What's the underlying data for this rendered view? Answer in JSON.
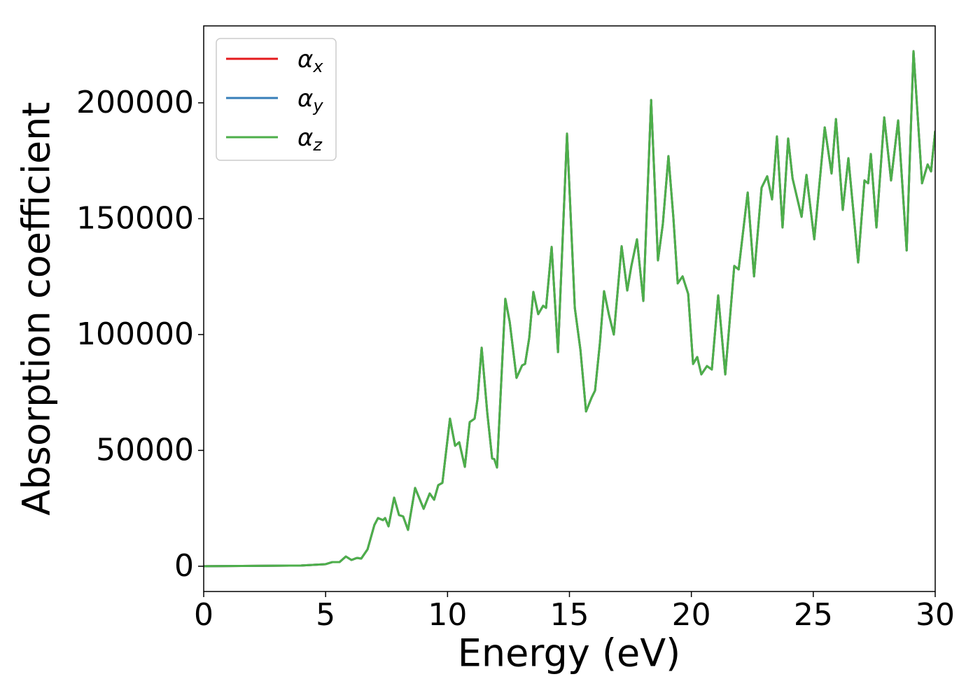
{
  "chart_data": {
    "type": "line",
    "x_label": "Energy (eV)",
    "y_label": "Absorption coefficient",
    "x": [
      0,
      4.0,
      5.0,
      5.28,
      5.57,
      5.83,
      6.06,
      6.29,
      6.46,
      6.72,
      7.0,
      7.15,
      7.35,
      7.44,
      7.58,
      7.81,
      8.01,
      8.18,
      8.38,
      8.67,
      9.02,
      9.27,
      9.45,
      9.62,
      9.79,
      10.1,
      10.31,
      10.48,
      10.71,
      10.91,
      11.11,
      11.23,
      11.4,
      11.63,
      11.83,
      11.92,
      12.03,
      12.37,
      12.55,
      12.83,
      13.06,
      13.18,
      13.35,
      13.52,
      13.72,
      13.92,
      14.04,
      14.27,
      14.53,
      14.9,
      15.22,
      15.45,
      15.68,
      15.91,
      16.05,
      16.25,
      16.42,
      16.62,
      16.82,
      17.14,
      17.37,
      17.54,
      17.77,
      18.03,
      18.35,
      18.63,
      18.83,
      19.06,
      19.26,
      19.44,
      19.64,
      19.87,
      20.07,
      20.24,
      20.41,
      20.64,
      20.84,
      21.1,
      21.39,
      21.76,
      21.94,
      22.31,
      22.57,
      22.88,
      23.11,
      23.31,
      23.51,
      23.74,
      23.97,
      24.15,
      24.52,
      24.72,
      25.04,
      25.47,
      25.75,
      25.93,
      26.21,
      26.44,
      26.84,
      27.1,
      27.25,
      27.36,
      27.59,
      27.91,
      28.19,
      28.48,
      28.83,
      29.11,
      29.46,
      29.69,
      29.83,
      30.0
    ],
    "series": [
      {
        "name": "αx",
        "color": "#e41a1c",
        "values": [
          0,
          300,
          900,
          1800,
          1800,
          4200,
          2700,
          3600,
          3300,
          7300,
          17800,
          20800,
          19900,
          20800,
          17200,
          29600,
          22100,
          21500,
          15700,
          33800,
          24800,
          31400,
          28700,
          35000,
          36000,
          63700,
          52000,
          53500,
          42900,
          62200,
          63700,
          72200,
          94300,
          66200,
          46500,
          46200,
          42600,
          115400,
          105400,
          81300,
          86700,
          87300,
          98500,
          118400,
          108800,
          112400,
          111500,
          137800,
          92400,
          186700,
          111500,
          93400,
          66800,
          72800,
          75800,
          96400,
          118700,
          108500,
          100000,
          138100,
          119000,
          129600,
          141100,
          114500,
          201200,
          132000,
          147700,
          177000,
          150800,
          122100,
          125100,
          117500,
          87300,
          90300,
          82800,
          86400,
          84900,
          116900,
          82800,
          129600,
          128100,
          161300,
          125100,
          163400,
          168300,
          158300,
          185500,
          146200,
          184600,
          167400,
          150800,
          168900,
          141100,
          189400,
          169500,
          193000,
          153800,
          176100,
          131100,
          166500,
          165300,
          177900,
          146200,
          193700,
          166500,
          192400,
          136300,
          222300,
          165300,
          173400,
          170400,
          187900
        ]
      },
      {
        "name": "αy",
        "color": "#377eb8",
        "values": [
          0,
          300,
          900,
          1800,
          1800,
          4200,
          2700,
          3600,
          3300,
          7300,
          17800,
          20800,
          19900,
          20800,
          17200,
          29600,
          22100,
          21500,
          15700,
          33800,
          24800,
          31400,
          28700,
          35000,
          36000,
          63700,
          52000,
          53500,
          42900,
          62200,
          63700,
          72200,
          94300,
          66200,
          46500,
          46200,
          42600,
          115400,
          105400,
          81300,
          86700,
          87300,
          98500,
          118400,
          108800,
          112400,
          111500,
          137800,
          92400,
          186700,
          111500,
          93400,
          66800,
          72800,
          75800,
          96400,
          118700,
          108500,
          100000,
          138100,
          119000,
          129600,
          141100,
          114500,
          201200,
          132000,
          147700,
          177000,
          150800,
          122100,
          125100,
          117500,
          87300,
          90300,
          82800,
          86400,
          84900,
          116900,
          82800,
          129600,
          128100,
          161300,
          125100,
          163400,
          168300,
          158300,
          185500,
          146200,
          184600,
          167400,
          150800,
          168900,
          141100,
          189400,
          169500,
          193000,
          153800,
          176100,
          131100,
          166500,
          165300,
          177900,
          146200,
          193700,
          166500,
          192400,
          136300,
          222300,
          165300,
          173400,
          170400,
          187900
        ]
      },
      {
        "name": "αz",
        "color": "#4daf4a",
        "values": [
          0,
          300,
          900,
          1800,
          1800,
          4200,
          2700,
          3600,
          3300,
          7300,
          17800,
          20800,
          19900,
          20800,
          17200,
          29600,
          22100,
          21500,
          15700,
          33800,
          24800,
          31400,
          28700,
          35000,
          36000,
          63700,
          52000,
          53500,
          42900,
          62200,
          63700,
          72200,
          94300,
          66200,
          46500,
          46200,
          42600,
          115400,
          105400,
          81300,
          86700,
          87300,
          98500,
          118400,
          108800,
          112400,
          111500,
          137800,
          92400,
          186700,
          111500,
          93400,
          66800,
          72800,
          75800,
          96400,
          118700,
          108500,
          100000,
          138100,
          119000,
          129600,
          141100,
          114500,
          201200,
          132000,
          147700,
          177000,
          150800,
          122100,
          125100,
          117500,
          87300,
          90300,
          82800,
          86400,
          84900,
          116900,
          82800,
          129600,
          128100,
          161300,
          125100,
          163400,
          168300,
          158300,
          185500,
          146200,
          184600,
          167400,
          150800,
          168900,
          141100,
          189400,
          169500,
          193000,
          153800,
          176100,
          131100,
          166500,
          165300,
          177900,
          146200,
          193700,
          166500,
          192400,
          136300,
          222300,
          165300,
          173400,
          170400,
          187900
        ]
      }
    ],
    "xlim": [
      0,
      30
    ],
    "xticks": [
      0,
      5,
      10,
      15,
      20,
      25,
      30
    ],
    "ylim": [
      -10900,
      233200
    ],
    "yticks": [
      0,
      50000,
      100000,
      150000,
      200000
    ],
    "grid": false,
    "legend": "upper left"
  }
}
